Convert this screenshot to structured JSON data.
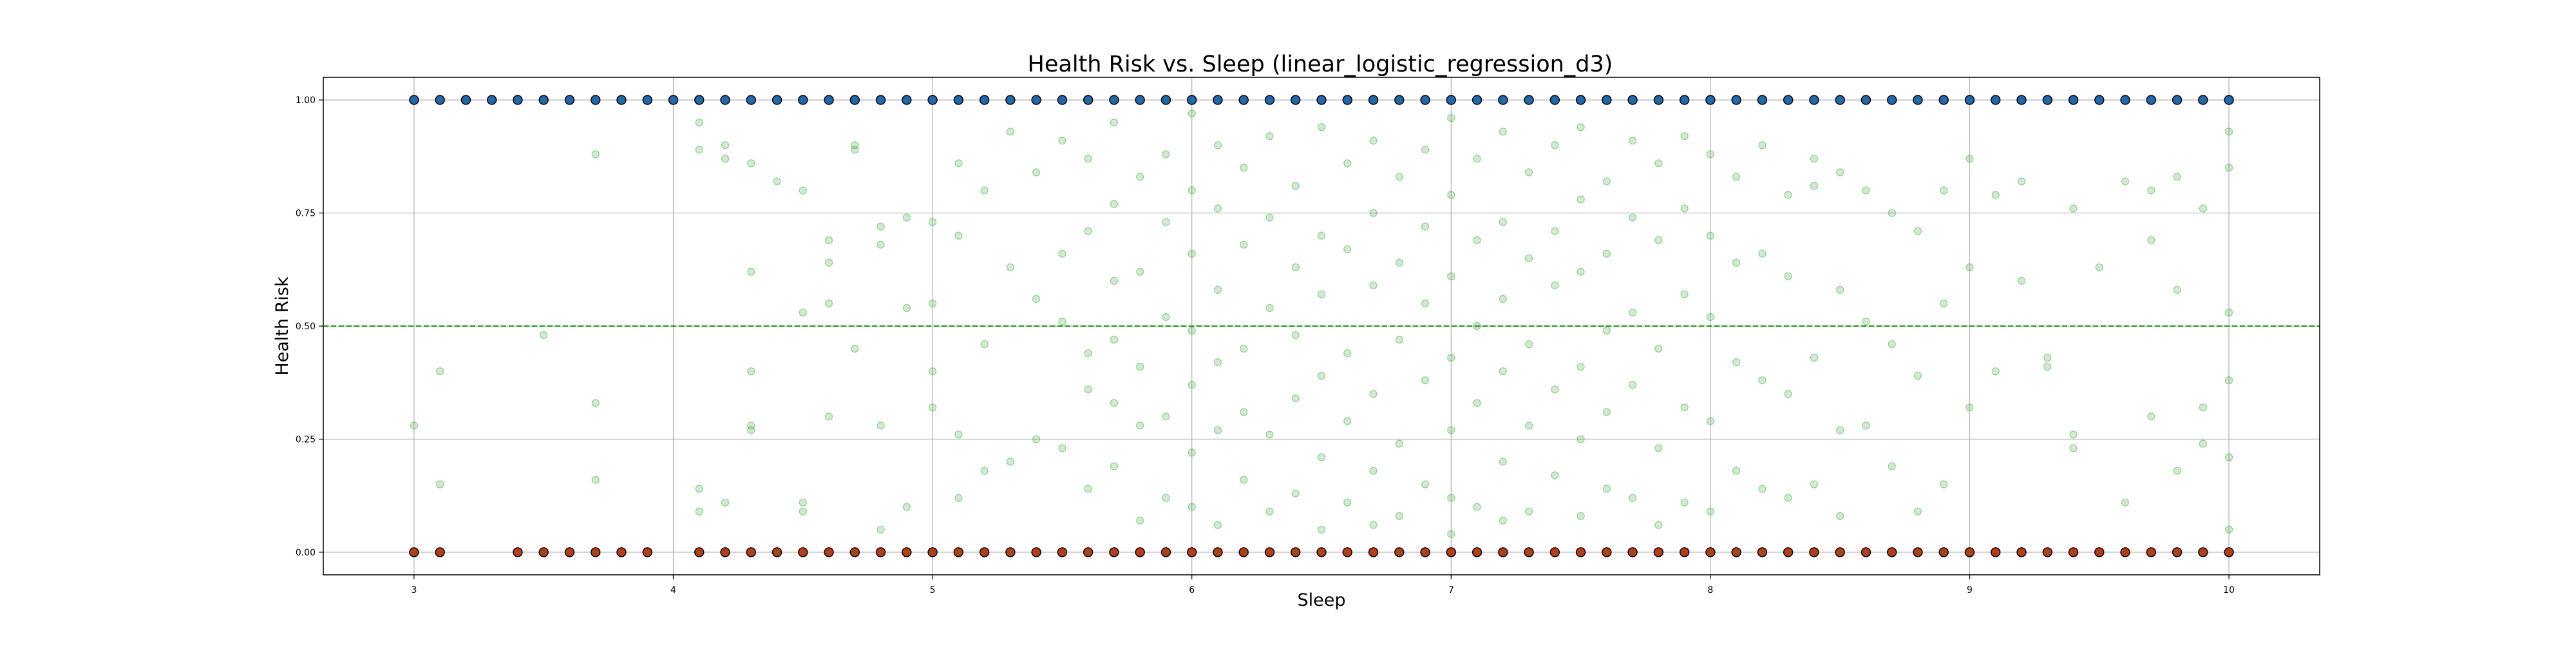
{
  "chart_data": {
    "type": "scatter",
    "title": "Health Risk vs. Sleep (linear_logistic_regression_d3)",
    "xlabel": "Sleep",
    "ylabel": "Health Risk",
    "xlim": [
      2.65,
      10.35
    ],
    "ylim": [
      -0.05,
      1.05
    ],
    "x_ticks": [
      3,
      4,
      5,
      6,
      7,
      8,
      9,
      10
    ],
    "y_ticks": [
      0.0,
      0.25,
      0.5,
      0.75,
      1.0
    ],
    "x_tick_labels": [
      "3",
      "4",
      "5",
      "6",
      "7",
      "8",
      "9",
      "10"
    ],
    "y_tick_labels": [
      "0.00",
      "0.25",
      "0.50",
      "0.75",
      "1.00"
    ],
    "grid": true,
    "threshold": 0.5,
    "colors": {
      "class_1": "#1f4fd6",
      "class_0": "#e01818",
      "prediction": "#2ca02c",
      "threshold": "#2ca02c",
      "marker_edge": "#000000"
    },
    "series": [
      {
        "role": "label_1",
        "x": [
          3.0,
          3.1,
          3.2,
          3.3,
          3.4,
          3.5,
          3.6,
          3.7,
          3.8,
          3.9,
          4.0,
          4.1,
          4.2,
          4.3,
          4.4,
          4.5,
          4.6,
          4.7,
          4.8,
          4.9,
          5.0,
          5.1,
          5.2,
          5.3,
          5.4,
          5.5,
          5.6,
          5.7,
          5.8,
          5.9,
          6.0,
          6.1,
          6.2,
          6.3,
          6.4,
          6.5,
          6.6,
          6.7,
          6.8,
          6.9,
          7.0,
          7.1,
          7.2,
          7.3,
          7.4,
          7.5,
          7.6,
          7.7,
          7.8,
          7.9,
          8.0,
          8.1,
          8.2,
          8.3,
          8.4,
          8.5,
          8.6,
          8.7,
          8.8,
          8.9,
          9.0,
          9.1,
          9.2,
          9.3,
          9.4,
          9.5,
          9.6,
          9.7,
          9.8,
          9.9,
          10.0
        ],
        "y": 1.0
      },
      {
        "role": "label_0",
        "x": [
          3.0,
          3.1,
          3.4,
          3.5,
          3.6,
          3.7,
          3.8,
          3.9,
          4.1,
          4.2,
          4.3,
          4.4,
          4.5,
          4.6,
          4.7,
          4.8,
          4.9,
          5.0,
          5.1,
          5.2,
          5.3,
          5.4,
          5.5,
          5.6,
          5.7,
          5.8,
          5.9,
          6.0,
          6.1,
          6.2,
          6.3,
          6.4,
          6.5,
          6.6,
          6.7,
          6.8,
          6.9,
          7.0,
          7.1,
          7.2,
          7.3,
          7.4,
          7.5,
          7.6,
          7.7,
          7.8,
          7.9,
          8.0,
          8.1,
          8.2,
          8.3,
          8.4,
          8.5,
          8.6,
          8.7,
          8.8,
          8.9,
          9.0,
          9.1,
          9.2,
          9.3,
          9.4,
          9.5,
          9.6,
          9.7,
          9.8,
          9.9,
          10.0
        ],
        "y": 0.0
      },
      {
        "role": "predicted",
        "points": [
          [
            3.0,
            0.28
          ],
          [
            3.1,
            0.4
          ],
          [
            3.1,
            0.15
          ],
          [
            3.5,
            0.48
          ],
          [
            3.7,
            0.88
          ],
          [
            3.7,
            0.33
          ],
          [
            3.7,
            0.16
          ],
          [
            4.1,
            0.95
          ],
          [
            4.1,
            0.89
          ],
          [
            4.1,
            0.14
          ],
          [
            4.1,
            0.09
          ],
          [
            4.2,
            0.9
          ],
          [
            4.2,
            0.87
          ],
          [
            4.2,
            0.11
          ],
          [
            4.3,
            0.86
          ],
          [
            4.3,
            0.62
          ],
          [
            4.3,
            0.4
          ],
          [
            4.3,
            0.28
          ],
          [
            4.3,
            0.27
          ],
          [
            4.4,
            0.82
          ],
          [
            4.5,
            0.8
          ],
          [
            4.5,
            0.53
          ],
          [
            4.5,
            0.11
          ],
          [
            4.5,
            0.09
          ],
          [
            4.6,
            0.69
          ],
          [
            4.6,
            0.64
          ],
          [
            4.6,
            0.55
          ],
          [
            4.6,
            0.3
          ],
          [
            4.7,
            0.9
          ],
          [
            4.7,
            0.89
          ],
          [
            4.7,
            0.45
          ],
          [
            4.8,
            0.72
          ],
          [
            4.8,
            0.68
          ],
          [
            4.8,
            0.28
          ],
          [
            4.8,
            0.05
          ],
          [
            4.9,
            0.74
          ],
          [
            4.9,
            0.54
          ],
          [
            4.9,
            0.1
          ],
          [
            5.0,
            0.73
          ],
          [
            5.0,
            0.55
          ],
          [
            5.0,
            0.4
          ],
          [
            5.0,
            0.32
          ],
          [
            5.1,
            0.86
          ],
          [
            5.1,
            0.7
          ],
          [
            5.1,
            0.26
          ],
          [
            5.1,
            0.12
          ],
          [
            5.2,
            0.8
          ],
          [
            5.2,
            0.46
          ],
          [
            5.2,
            0.18
          ],
          [
            5.3,
            0.93
          ],
          [
            5.3,
            0.63
          ],
          [
            5.3,
            0.2
          ],
          [
            5.4,
            0.84
          ],
          [
            5.4,
            0.56
          ],
          [
            5.4,
            0.25
          ],
          [
            5.5,
            0.91
          ],
          [
            5.5,
            0.66
          ],
          [
            5.5,
            0.51
          ],
          [
            5.5,
            0.23
          ],
          [
            5.6,
            0.87
          ],
          [
            5.6,
            0.71
          ],
          [
            5.6,
            0.44
          ],
          [
            5.6,
            0.36
          ],
          [
            5.6,
            0.14
          ],
          [
            5.7,
            0.95
          ],
          [
            5.7,
            0.77
          ],
          [
            5.7,
            0.6
          ],
          [
            5.7,
            0.47
          ],
          [
            5.7,
            0.33
          ],
          [
            5.7,
            0.19
          ],
          [
            5.8,
            0.83
          ],
          [
            5.8,
            0.62
          ],
          [
            5.8,
            0.41
          ],
          [
            5.8,
            0.28
          ],
          [
            5.8,
            0.07
          ],
          [
            5.9,
            0.88
          ],
          [
            5.9,
            0.73
          ],
          [
            5.9,
            0.52
          ],
          [
            5.9,
            0.3
          ],
          [
            5.9,
            0.12
          ],
          [
            6.0,
            0.97
          ],
          [
            6.0,
            0.8
          ],
          [
            6.0,
            0.66
          ],
          [
            6.0,
            0.49
          ],
          [
            6.0,
            0.37
          ],
          [
            6.0,
            0.22
          ],
          [
            6.0,
            0.1
          ],
          [
            6.1,
            0.9
          ],
          [
            6.1,
            0.76
          ],
          [
            6.1,
            0.58
          ],
          [
            6.1,
            0.42
          ],
          [
            6.1,
            0.27
          ],
          [
            6.1,
            0.06
          ],
          [
            6.2,
            0.85
          ],
          [
            6.2,
            0.68
          ],
          [
            6.2,
            0.45
          ],
          [
            6.2,
            0.31
          ],
          [
            6.2,
            0.16
          ],
          [
            6.3,
            0.92
          ],
          [
            6.3,
            0.74
          ],
          [
            6.3,
            0.54
          ],
          [
            6.3,
            0.26
          ],
          [
            6.3,
            0.09
          ],
          [
            6.4,
            0.81
          ],
          [
            6.4,
            0.63
          ],
          [
            6.4,
            0.48
          ],
          [
            6.4,
            0.34
          ],
          [
            6.4,
            0.13
          ],
          [
            6.5,
            0.94
          ],
          [
            6.5,
            0.7
          ],
          [
            6.5,
            0.57
          ],
          [
            6.5,
            0.39
          ],
          [
            6.5,
            0.21
          ],
          [
            6.5,
            0.05
          ],
          [
            6.6,
            0.86
          ],
          [
            6.6,
            0.67
          ],
          [
            6.6,
            0.44
          ],
          [
            6.6,
            0.29
          ],
          [
            6.6,
            0.11
          ],
          [
            6.7,
            0.91
          ],
          [
            6.7,
            0.75
          ],
          [
            6.7,
            0.59
          ],
          [
            6.7,
            0.35
          ],
          [
            6.7,
            0.18
          ],
          [
            6.7,
            0.06
          ],
          [
            6.8,
            0.83
          ],
          [
            6.8,
            0.64
          ],
          [
            6.8,
            0.47
          ],
          [
            6.8,
            0.24
          ],
          [
            6.8,
            0.08
          ],
          [
            6.9,
            0.89
          ],
          [
            6.9,
            0.72
          ],
          [
            6.9,
            0.55
          ],
          [
            6.9,
            0.38
          ],
          [
            6.9,
            0.15
          ],
          [
            7.0,
            0.96
          ],
          [
            7.0,
            0.79
          ],
          [
            7.0,
            0.61
          ],
          [
            7.0,
            0.43
          ],
          [
            7.0,
            0.27
          ],
          [
            7.0,
            0.12
          ],
          [
            7.0,
            0.04
          ],
          [
            7.1,
            0.87
          ],
          [
            7.1,
            0.69
          ],
          [
            7.1,
            0.5
          ],
          [
            7.1,
            0.33
          ],
          [
            7.1,
            0.1
          ],
          [
            7.2,
            0.93
          ],
          [
            7.2,
            0.73
          ],
          [
            7.2,
            0.56
          ],
          [
            7.2,
            0.4
          ],
          [
            7.2,
            0.2
          ],
          [
            7.2,
            0.07
          ],
          [
            7.3,
            0.84
          ],
          [
            7.3,
            0.65
          ],
          [
            7.3,
            0.46
          ],
          [
            7.3,
            0.28
          ],
          [
            7.3,
            0.09
          ],
          [
            7.4,
            0.9
          ],
          [
            7.4,
            0.71
          ],
          [
            7.4,
            0.59
          ],
          [
            7.4,
            0.36
          ],
          [
            7.4,
            0.17
          ],
          [
            7.5,
            0.94
          ],
          [
            7.5,
            0.78
          ],
          [
            7.5,
            0.62
          ],
          [
            7.5,
            0.41
          ],
          [
            7.5,
            0.25
          ],
          [
            7.5,
            0.08
          ],
          [
            7.6,
            0.82
          ],
          [
            7.6,
            0.66
          ],
          [
            7.6,
            0.49
          ],
          [
            7.6,
            0.31
          ],
          [
            7.6,
            0.14
          ],
          [
            7.7,
            0.91
          ],
          [
            7.7,
            0.74
          ],
          [
            7.7,
            0.53
          ],
          [
            7.7,
            0.37
          ],
          [
            7.7,
            0.12
          ],
          [
            7.8,
            0.86
          ],
          [
            7.8,
            0.69
          ],
          [
            7.8,
            0.45
          ],
          [
            7.8,
            0.23
          ],
          [
            7.8,
            0.06
          ],
          [
            7.9,
            0.92
          ],
          [
            7.9,
            0.76
          ],
          [
            7.9,
            0.57
          ],
          [
            7.9,
            0.32
          ],
          [
            7.9,
            0.11
          ],
          [
            8.0,
            0.88
          ],
          [
            8.0,
            0.7
          ],
          [
            8.0,
            0.52
          ],
          [
            8.0,
            0.29
          ],
          [
            8.0,
            0.09
          ],
          [
            8.1,
            0.83
          ],
          [
            8.1,
            0.64
          ],
          [
            8.1,
            0.42
          ],
          [
            8.1,
            0.18
          ],
          [
            8.2,
            0.9
          ],
          [
            8.2,
            0.66
          ],
          [
            8.2,
            0.38
          ],
          [
            8.2,
            0.14
          ],
          [
            8.3,
            0.79
          ],
          [
            8.3,
            0.61
          ],
          [
            8.3,
            0.35
          ],
          [
            8.3,
            0.12
          ],
          [
            8.4,
            0.87
          ],
          [
            8.4,
            0.81
          ],
          [
            8.4,
            0.43
          ],
          [
            8.4,
            0.15
          ],
          [
            8.5,
            0.84
          ],
          [
            8.5,
            0.58
          ],
          [
            8.5,
            0.27
          ],
          [
            8.5,
            0.08
          ],
          [
            8.6,
            0.8
          ],
          [
            8.6,
            0.51
          ],
          [
            8.6,
            0.28
          ],
          [
            8.7,
            0.75
          ],
          [
            8.7,
            0.46
          ],
          [
            8.7,
            0.19
          ],
          [
            8.8,
            0.71
          ],
          [
            8.8,
            0.39
          ],
          [
            8.8,
            0.09
          ],
          [
            8.9,
            0.8
          ],
          [
            8.9,
            0.55
          ],
          [
            8.9,
            0.15
          ],
          [
            9.0,
            0.87
          ],
          [
            9.0,
            0.63
          ],
          [
            9.0,
            0.32
          ],
          [
            9.1,
            0.79
          ],
          [
            9.1,
            0.4
          ],
          [
            9.2,
            0.82
          ],
          [
            9.2,
            0.6
          ],
          [
            9.3,
            0.43
          ],
          [
            9.3,
            0.41
          ],
          [
            9.4,
            0.76
          ],
          [
            9.4,
            0.26
          ],
          [
            9.4,
            0.23
          ],
          [
            9.5,
            0.63
          ],
          [
            9.6,
            0.82
          ],
          [
            9.6,
            0.11
          ],
          [
            9.7,
            0.8
          ],
          [
            9.7,
            0.69
          ],
          [
            9.7,
            0.3
          ],
          [
            9.8,
            0.83
          ],
          [
            9.8,
            0.58
          ],
          [
            9.8,
            0.18
          ],
          [
            9.9,
            0.76
          ],
          [
            9.9,
            0.32
          ],
          [
            9.9,
            0.24
          ],
          [
            10.0,
            0.93
          ],
          [
            10.0,
            0.85
          ],
          [
            10.0,
            0.53
          ],
          [
            10.0,
            0.38
          ],
          [
            10.0,
            0.21
          ],
          [
            10.0,
            0.05
          ]
        ]
      }
    ]
  }
}
